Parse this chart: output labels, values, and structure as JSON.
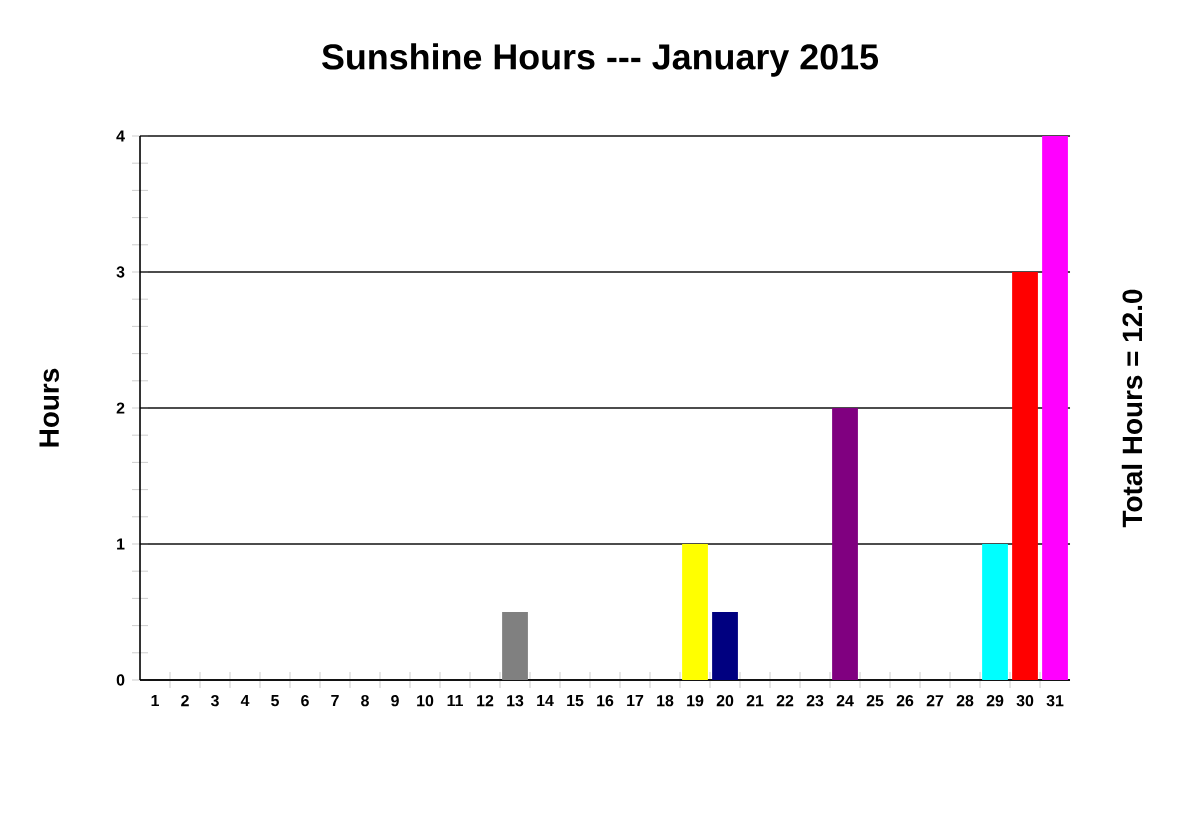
{
  "chart_data": {
    "type": "bar",
    "title": "Sunshine Hours --- January 2015",
    "ylabel": "Hours",
    "categories": [
      "1",
      "2",
      "3",
      "4",
      "5",
      "6",
      "7",
      "8",
      "9",
      "10",
      "11",
      "12",
      "13",
      "14",
      "15",
      "16",
      "17",
      "18",
      "19",
      "20",
      "21",
      "22",
      "23",
      "24",
      "25",
      "26",
      "27",
      "28",
      "29",
      "30",
      "31"
    ],
    "values": [
      0,
      0,
      0,
      0,
      0,
      0,
      0,
      0,
      0,
      0,
      0,
      0,
      0.5,
      0,
      0,
      0,
      0,
      0,
      1,
      0.5,
      0,
      0,
      0,
      2,
      0,
      0,
      0,
      0,
      1,
      3,
      4
    ],
    "colors": [
      "#808080",
      "#808080",
      "#808080",
      "#808080",
      "#808080",
      "#808080",
      "#808080",
      "#808080",
      "#808080",
      "#808080",
      "#808080",
      "#808080",
      "#808080",
      "#808080",
      "#808080",
      "#808080",
      "#808080",
      "#808080",
      "#ffff00",
      "#000080",
      "#808080",
      "#808080",
      "#808080",
      "#800080",
      "#808080",
      "#808080",
      "#808080",
      "#808080",
      "#00ffff",
      "#ff0000",
      "#ff00ff"
    ],
    "ylim": [
      0,
      4
    ],
    "yticks": [
      0,
      1,
      2,
      3,
      4
    ],
    "grid": "y",
    "annotations": [
      "Total Hours = 12.0"
    ]
  }
}
